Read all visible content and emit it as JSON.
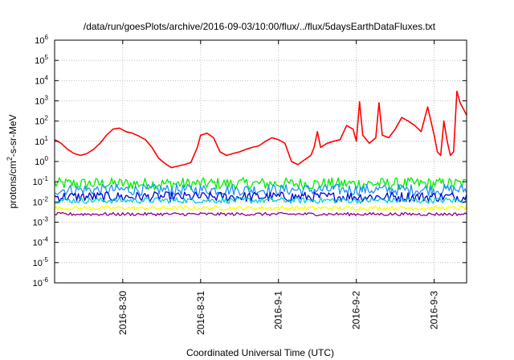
{
  "chart_data": {
    "type": "line",
    "title": "/data/run/goesPlots/archive/2016-09-03/10:00/flux/../flux/5daysEarthDataFluxes.txt",
    "xlabel": "Coordinated Universal Time (UTC)",
    "ylabel": {
      "base": "protons/cm",
      "sup": "2",
      "rest": "-s-sr-MeV"
    },
    "y_scale": "log",
    "ylim": [
      1e-06,
      1000000.0
    ],
    "y_ticks": [
      {
        "value": 1000000.0,
        "base": "10",
        "exp": "6"
      },
      {
        "value": 100000.0,
        "base": "10",
        "exp": "5"
      },
      {
        "value": 10000.0,
        "base": "10",
        "exp": "4"
      },
      {
        "value": 1000.0,
        "base": "10",
        "exp": "3"
      },
      {
        "value": 100.0,
        "base": "10",
        "exp": "2"
      },
      {
        "value": 10.0,
        "base": "10",
        "exp": "1"
      },
      {
        "value": 1.0,
        "base": "10",
        "exp": "0"
      },
      {
        "value": 0.1,
        "base": "10",
        "exp": "-1"
      },
      {
        "value": 0.01,
        "base": "10",
        "exp": "-2"
      },
      {
        "value": 0.001,
        "base": "10",
        "exp": "-3"
      },
      {
        "value": 0.0001,
        "base": "10",
        "exp": "-4"
      },
      {
        "value": 1e-05,
        "base": "10",
        "exp": "-5"
      },
      {
        "value": 1e-06,
        "base": "10",
        "exp": "-6"
      }
    ],
    "xlim": [
      "2016-08-29T03:00",
      "2016-09-03T10:00"
    ],
    "x_ticks": [
      {
        "value": "2016-08-30T00:00",
        "label": "2016-8-30"
      },
      {
        "value": "2016-08-31T00:00",
        "label": "2016-8-31"
      },
      {
        "value": "2016-09-01T00:00",
        "label": "2016-9-1"
      },
      {
        "value": "2016-09-02T00:00",
        "label": "2016-9-2"
      },
      {
        "value": "2016-09-03T00:00",
        "label": "2016-9-3"
      }
    ],
    "grid": true,
    "series": [
      {
        "color": "#ff0000",
        "points": [
          [
            "2016-08-29T03:00",
            12
          ],
          [
            "2016-08-29T05:00",
            8
          ],
          [
            "2016-08-29T07:00",
            4
          ],
          [
            "2016-08-29T09:00",
            2.5
          ],
          [
            "2016-08-29T11:00",
            2
          ],
          [
            "2016-08-29T13:00",
            2.5
          ],
          [
            "2016-08-29T15:00",
            4
          ],
          [
            "2016-08-29T17:00",
            8
          ],
          [
            "2016-08-29T19:00",
            20
          ],
          [
            "2016-08-29T21:00",
            40
          ],
          [
            "2016-08-29T23:00",
            45
          ],
          [
            "2016-08-30T01:00",
            30
          ],
          [
            "2016-08-30T03:00",
            25
          ],
          [
            "2016-08-30T05:00",
            18
          ],
          [
            "2016-08-30T07:00",
            12
          ],
          [
            "2016-08-30T09:00",
            5
          ],
          [
            "2016-08-30T11:00",
            1.5
          ],
          [
            "2016-08-30T13:00",
            0.8
          ],
          [
            "2016-08-30T15:00",
            0.5
          ],
          [
            "2016-08-30T17:00",
            0.6
          ],
          [
            "2016-08-30T19:00",
            0.7
          ],
          [
            "2016-08-30T21:00",
            0.9
          ],
          [
            "2016-08-30T23:00",
            5
          ],
          [
            "2016-08-31T00:00",
            20
          ],
          [
            "2016-08-31T02:00",
            25
          ],
          [
            "2016-08-31T04:00",
            15
          ],
          [
            "2016-08-31T06:00",
            3
          ],
          [
            "2016-08-31T08:00",
            2
          ],
          [
            "2016-08-31T10:00",
            2.5
          ],
          [
            "2016-08-31T12:00",
            3
          ],
          [
            "2016-08-31T14:00",
            4
          ],
          [
            "2016-08-31T16:00",
            5
          ],
          [
            "2016-08-31T18:00",
            6
          ],
          [
            "2016-08-31T20:00",
            10
          ],
          [
            "2016-08-31T22:00",
            15
          ],
          [
            "2016-09-01T00:00",
            12
          ],
          [
            "2016-09-01T02:00",
            8
          ],
          [
            "2016-09-01T04:00",
            1
          ],
          [
            "2016-09-01T06:00",
            0.7
          ],
          [
            "2016-09-01T08:00",
            1.2
          ],
          [
            "2016-09-01T10:00",
            2
          ],
          [
            "2016-09-01T11:00",
            5
          ],
          [
            "2016-09-01T12:00",
            30
          ],
          [
            "2016-09-01T13:00",
            5
          ],
          [
            "2016-09-01T15:00",
            8
          ],
          [
            "2016-09-01T17:00",
            10
          ],
          [
            "2016-09-01T19:00",
            12
          ],
          [
            "2016-09-01T21:00",
            60
          ],
          [
            "2016-09-01T23:00",
            40
          ],
          [
            "2016-09-02T00:00",
            10
          ],
          [
            "2016-09-02T01:00",
            900
          ],
          [
            "2016-09-02T02:00",
            20
          ],
          [
            "2016-09-02T04:00",
            8
          ],
          [
            "2016-09-02T06:00",
            15
          ],
          [
            "2016-09-02T07:00",
            800
          ],
          [
            "2016-09-02T08:00",
            20
          ],
          [
            "2016-09-02T10:00",
            15
          ],
          [
            "2016-09-02T12:00",
            40
          ],
          [
            "2016-09-02T14:00",
            150
          ],
          [
            "2016-09-02T16:00",
            100
          ],
          [
            "2016-09-02T18:00",
            60
          ],
          [
            "2016-09-02T20:00",
            30
          ],
          [
            "2016-09-02T22:00",
            500
          ],
          [
            "2016-09-03T00:00",
            20
          ],
          [
            "2016-09-03T01:00",
            3
          ],
          [
            "2016-09-03T02:00",
            2
          ],
          [
            "2016-09-03T03:00",
            100
          ],
          [
            "2016-09-03T04:00",
            10
          ],
          [
            "2016-09-03T05:00",
            2
          ],
          [
            "2016-09-03T06:00",
            3
          ],
          [
            "2016-09-03T07:00",
            3000
          ],
          [
            "2016-09-03T08:00",
            800
          ],
          [
            "2016-09-03T10:00",
            200
          ]
        ]
      },
      {
        "color": "#00ee00",
        "typical_value": 0.08,
        "scatter": 0.3
      },
      {
        "color": "#1e90ff",
        "typical_value": 0.04,
        "scatter": 0.28
      },
      {
        "color": "#0000cd",
        "typical_value": 0.018,
        "scatter": 0.25
      },
      {
        "color": "#00ced1",
        "typical_value": 0.012,
        "scatter": 0.15
      },
      {
        "color": "#ffff00",
        "typical_value": 0.005,
        "scatter": 0.1
      },
      {
        "color": "#8b008b",
        "typical_value": 0.0025,
        "scatter": 0.08
      }
    ]
  }
}
